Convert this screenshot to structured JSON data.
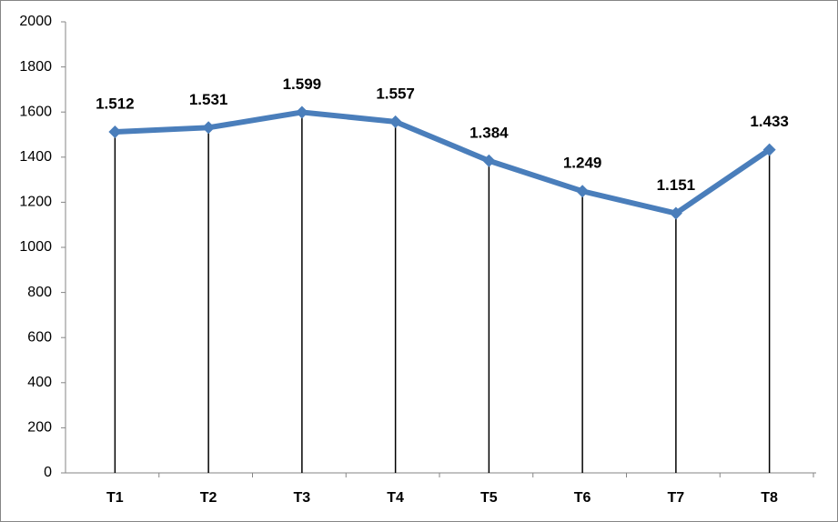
{
  "chart_data": {
    "type": "line",
    "categories": [
      "T1",
      "T2",
      "T3",
      "T4",
      "T5",
      "T6",
      "T7",
      "T8"
    ],
    "series": [
      {
        "color": "#4a7ebb",
        "values": [
          1512,
          1531,
          1599,
          1557,
          1384,
          1249,
          1151,
          1433
        ],
        "value_labels": [
          "1.512",
          "1.531",
          "1.599",
          "1.557",
          "1.384",
          "1.249",
          "1.151",
          "1.433"
        ]
      }
    ],
    "ylim": [
      0,
      2000
    ],
    "yticks": [
      0,
      200,
      400,
      600,
      800,
      1000,
      1200,
      1400,
      1600,
      1800,
      2000
    ],
    "grid": false,
    "drop_lines": true,
    "markers": "diamond"
  }
}
